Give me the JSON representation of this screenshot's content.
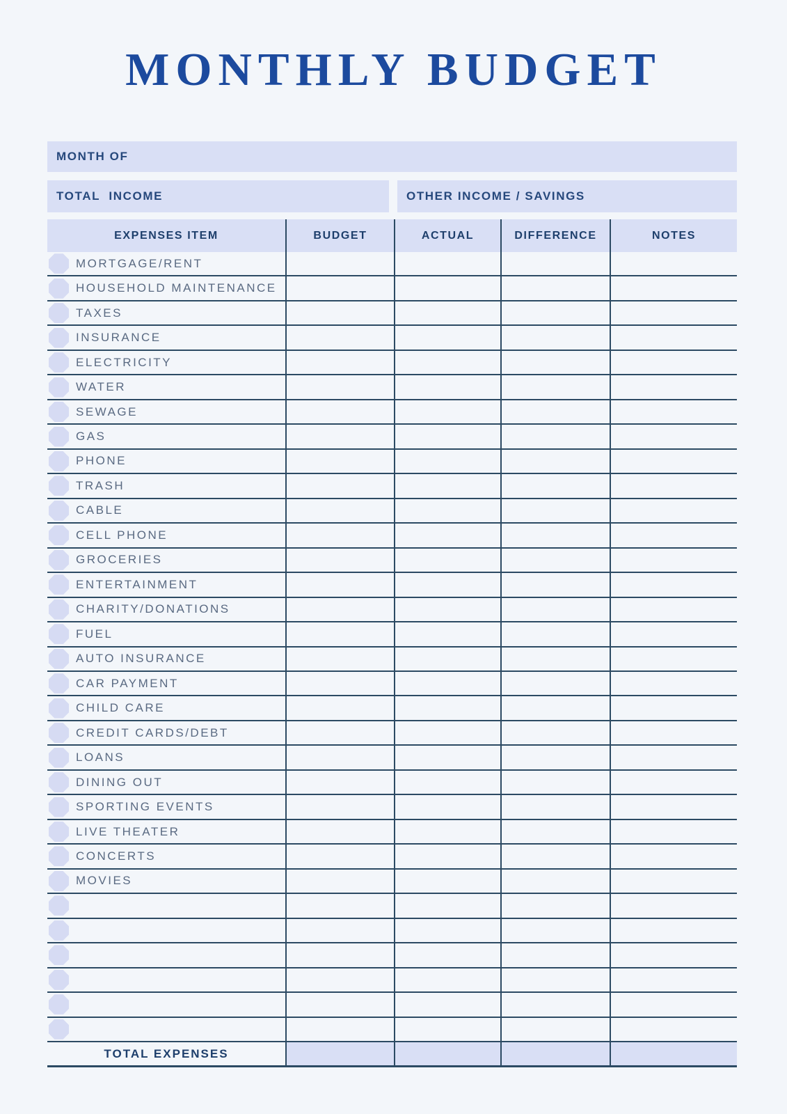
{
  "title": "MONTHLY BUDGET",
  "colors": {
    "page_bg": "#f3f6fa",
    "panel_lavender": "#d9dff5",
    "bullet_lavender": "#d6dbf3",
    "title_blue": "#1c4a9e",
    "label_navy": "#26487c",
    "header_navy": "#1e3f6c",
    "item_text_blue_gray": "#5a6a82",
    "rule_line": "#2c4a63"
  },
  "fields": {
    "month_of": {
      "label": "MONTH OF",
      "value": ""
    },
    "total_income": {
      "label": "TOTAL  INCOME",
      "value": ""
    },
    "other_income": {
      "label": "OTHER INCOME / SAVINGS",
      "value": ""
    }
  },
  "table": {
    "headers": [
      "EXPENSES ITEM",
      "BUDGET",
      "ACTUAL",
      "DIFFERENCE",
      "NOTES"
    ],
    "expense_items": [
      "MORTGAGE/RENT",
      "HOUSEHOLD MAINTENANCE",
      "TAXES",
      "INSURANCE",
      "ELECTRICITY",
      "WATER",
      "SEWAGE",
      "GAS",
      "PHONE",
      "TRASH",
      "CABLE",
      "CELL PHONE",
      "GROCERIES",
      "ENTERTAINMENT",
      "CHARITY/DONATIONS",
      "FUEL",
      "AUTO INSURANCE",
      "CAR PAYMENT",
      "CHILD CARE",
      "CREDIT CARDS/DEBT",
      "LOANS",
      "DINING OUT",
      "SPORTING EVENTS",
      "LIVE THEATER",
      "CONCERTS",
      "MOVIES"
    ],
    "empty_row_count": 6,
    "cell_values": "",
    "total_row": {
      "label": "TOTAL EXPENSES",
      "budget": "",
      "actual": "",
      "difference": "",
      "notes": ""
    }
  }
}
